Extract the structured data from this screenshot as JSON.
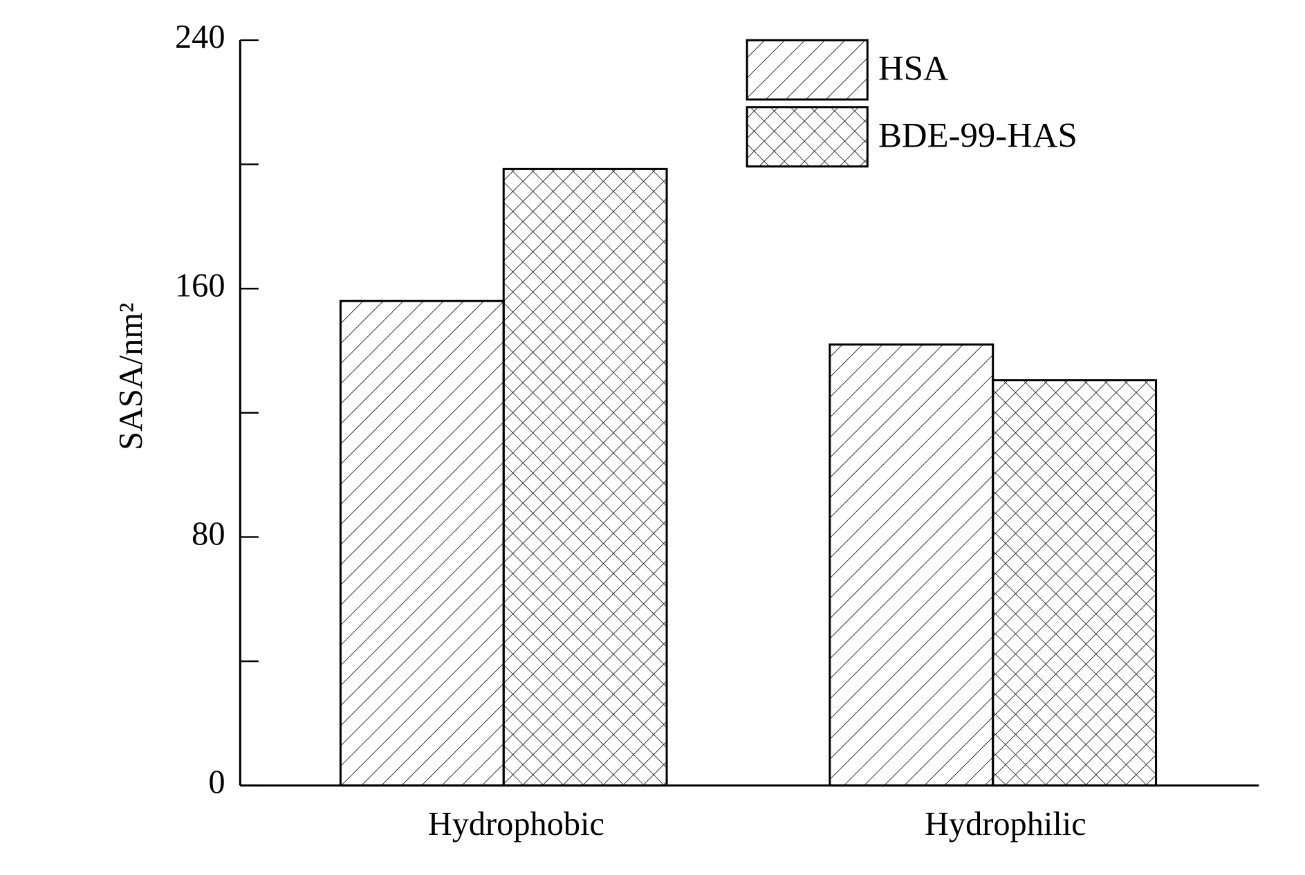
{
  "chart_data": {
    "type": "bar",
    "y_label": "SASA/nm²",
    "categories": [
      "Hydrophobic",
      "Hydrophilic"
    ],
    "series": [
      {
        "name": "HSA",
        "color": "#000000",
        "pattern": "diagonal",
        "values": [
          156,
          142
        ]
      },
      {
        "name": "BDE-99-HAS",
        "color": "#000000",
        "pattern": "crosshatch",
        "values": [
          198.5,
          130.5
        ]
      }
    ],
    "ylim": [
      0,
      240
    ],
    "yticks": [
      0,
      80,
      160,
      240
    ],
    "yminorticks": [
      40,
      120,
      200
    ],
    "legend": "upper right"
  }
}
